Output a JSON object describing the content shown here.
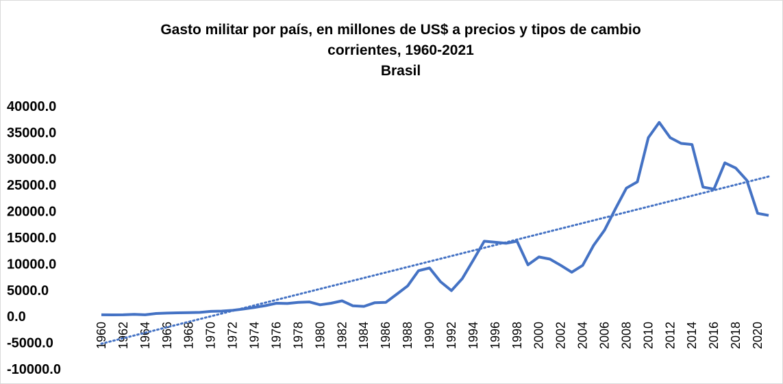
{
  "chart_data": {
    "type": "line",
    "title": [
      "Gasto militar por país, en millones de US$ a precios y tipos de cambio",
      "corrientes, 1960-2021"
    ],
    "subtitle": "Brasil",
    "categories": [
      "1960",
      null,
      "1962",
      null,
      "1964",
      null,
      "1966",
      null,
      "1968",
      null,
      "1970",
      null,
      "1972",
      null,
      "1974",
      null,
      "1976",
      null,
      "1978",
      null,
      "1980",
      null,
      "1982",
      null,
      "1984",
      null,
      "1986",
      null,
      "1988",
      null,
      "1990",
      null,
      "1992",
      null,
      "1994",
      null,
      "1996",
      null,
      "1998",
      null,
      "2000",
      null,
      "2002",
      null,
      "2004",
      null,
      "2006",
      null,
      "2008",
      null,
      "2010",
      null,
      "2012",
      null,
      "2014",
      null,
      "2016",
      null,
      "2018",
      null,
      "2020",
      null
    ],
    "series": [
      {
        "color": "#4472c4",
        "values": [
          300,
          280,
          300,
          380,
          300,
          550,
          620,
          680,
          700,
          750,
          950,
          1000,
          1150,
          1400,
          1700,
          2050,
          2500,
          2450,
          2650,
          2750,
          2200,
          2500,
          2950,
          2000,
          1900,
          2600,
          2650,
          4200,
          5800,
          8700,
          9200,
          6600,
          4900,
          7200,
          10700,
          14300,
          14100,
          13900,
          14300,
          9800,
          11300,
          10900,
          9700,
          8400,
          9700,
          13500,
          16400,
          20500,
          24400,
          25600,
          34000,
          36900,
          34000,
          32900,
          32700,
          24600,
          24200,
          29200,
          28200,
          25900,
          19600,
          19200
        ]
      }
    ],
    "trendline": {
      "color": "#4472c4",
      "values": [
        -5200,
        26600
      ]
    },
    "ylim": [
      -10000,
      40000
    ],
    "yticks": [
      {
        "value": -10000,
        "label": "-10000.0"
      },
      {
        "value": -5000,
        "label": "-5000.0"
      },
      {
        "value": 0,
        "label": "0.0"
      },
      {
        "value": 5000,
        "label": "5000.0"
      },
      {
        "value": 10000,
        "label": "10000.0"
      },
      {
        "value": 15000,
        "label": "15000.0"
      },
      {
        "value": 20000,
        "label": "20000.0"
      },
      {
        "value": 25000,
        "label": "25000.0"
      },
      {
        "value": 30000,
        "label": "30000.0"
      },
      {
        "value": 35000,
        "label": "35000.0"
      },
      {
        "value": 40000,
        "label": "40000.0"
      }
    ],
    "grid": false
  }
}
